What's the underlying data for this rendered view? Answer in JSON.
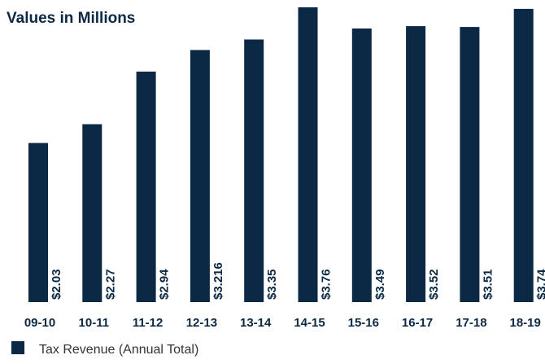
{
  "chart_data": {
    "type": "bar",
    "title": "Values in Millions",
    "categories": [
      "09-10",
      "10-11",
      "11-12",
      "12-13",
      "13-14",
      "14-15",
      "15-16",
      "16-17",
      "17-18",
      "18-19"
    ],
    "value_labels": [
      "$2.03",
      "$2.27",
      "$2.94",
      "$3.216",
      "$3.35",
      "$3.76",
      "$3.49",
      "$3.52",
      "$3.51",
      "$3.74"
    ],
    "series": [
      {
        "name": "Tax Revenue (Annual Total)",
        "color": "#0b2844",
        "values": [
          2.03,
          2.27,
          2.94,
          3.216,
          3.35,
          3.76,
          3.49,
          3.52,
          3.51,
          3.74
        ]
      }
    ],
    "ylim": [
      0,
      3.76
    ],
    "grid": false,
    "legend_position": "bottom-left"
  }
}
